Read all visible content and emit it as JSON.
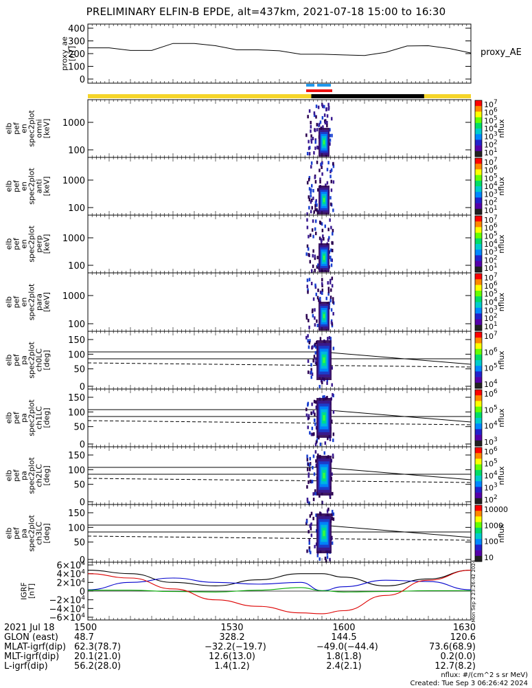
{
  "title": "PRELIMINARY ELFIN-B EPDE, alt=437km, 2021-07-18 15:00 to 16:30",
  "chart_data": {
    "type": "line",
    "panels": [
      {
        "id": "proxy_ae",
        "ylabel": "proxy_ae [nT]",
        "legend": "proxy_AE",
        "ylim": [
          0,
          400
        ],
        "yticks": [
          "400",
          "300",
          "200",
          "100",
          "0"
        ],
        "series": [
          {
            "name": "proxy_AE",
            "x": [
              0,
              5,
              10,
              15,
              20,
              25,
              30,
              35,
              40,
              45,
              50,
              55,
              60,
              65,
              70,
              75,
              80,
              85,
              90
            ],
            "values": [
              245,
              245,
              225,
              225,
              280,
              280,
              262,
              230,
              230,
              222,
              195,
              195,
              190,
              185,
              210,
              260,
              262,
              240,
              205
            ]
          }
        ]
      },
      {
        "id": "en_omni",
        "ylabel": "elb pef en spec2plot omni [keV]",
        "cbar": "nflux",
        "cbar_ticks": [
          "10^7",
          "10^6",
          "10^5",
          "10^4",
          "10^3",
          "10^2",
          "10^1"
        ],
        "yticks": [
          "1000",
          "100"
        ]
      },
      {
        "id": "en_anti",
        "ylabel": "elb pef en spec2plot anti [keV]",
        "cbar": "nflux",
        "cbar_ticks": [
          "10^7",
          "10^6",
          "10^5",
          "10^4",
          "10^3",
          "10^2",
          "10^1"
        ],
        "yticks": [
          "1000",
          "100"
        ]
      },
      {
        "id": "en_perp",
        "ylabel": "elb pef en spec2plot perp [keV]",
        "cbar": "nflux",
        "cbar_ticks": [
          "10^7",
          "10^6",
          "10^5",
          "10^4",
          "10^3",
          "10^2",
          "10^1"
        ],
        "yticks": [
          "1000",
          "100"
        ]
      },
      {
        "id": "en_para",
        "ylabel": "elb pef en spec2plot para [keV]",
        "cbar": "nflux",
        "cbar_ticks": [
          "10^7",
          "10^6",
          "10^5",
          "10^4",
          "10^3",
          "10^2",
          "10^1"
        ],
        "yticks": [
          "1000",
          "100"
        ]
      },
      {
        "id": "pa_ch0",
        "ylabel": "elb pef pa spec2plot ch0LC [deg]",
        "cbar": "nflux",
        "cbar_ticks": [
          "10^7",
          "10^6",
          "10^5",
          "10^4"
        ],
        "yticks": [
          "150",
          "100",
          "50",
          "0"
        ]
      },
      {
        "id": "pa_ch1",
        "ylabel": "elb pef pa spec2plot ch1LC [deg]",
        "cbar": "nflux",
        "cbar_ticks": [
          "10^6",
          "10^5",
          "10^4",
          "10^3"
        ],
        "yticks": [
          "150",
          "100",
          "50",
          "0"
        ]
      },
      {
        "id": "pa_ch2",
        "ylabel": "elb pef pa spec2plot ch2LC [deg]",
        "cbar": "nflux",
        "cbar_ticks": [
          "10^6",
          "10^5",
          "10^4",
          "10^3",
          "10^2"
        ],
        "yticks": [
          "150",
          "100",
          "50",
          "0"
        ]
      },
      {
        "id": "pa_ch3",
        "ylabel": "elb pef pa spec2plot ch3LC [deg]",
        "cbar": "nflux",
        "cbar_ticks": [
          "10000",
          "1000",
          "100",
          "10"
        ],
        "yticks": [
          "150",
          "100",
          "50",
          "0"
        ]
      },
      {
        "id": "igrf",
        "ylabel": "IGRF [nT]",
        "ylim": [
          -60000,
          60000
        ],
        "yticks": [
          "6×10^4",
          "4×10^4",
          "2×10^4",
          "0",
          "−2×10^4",
          "−4×10^4",
          "−6×10^4"
        ],
        "series": [
          {
            "color": "#000000",
            "x": [
              0,
              10,
              20,
              30,
              40,
              50,
              55,
              60,
              70,
              80,
              90
            ],
            "values": [
              48000,
              40000,
              20000,
              12000,
              26000,
              40000,
              40000,
              32000,
              12000,
              28000,
              48000
            ]
          },
          {
            "color": "#0000cc",
            "x": [
              0,
              10,
              20,
              30,
              40,
              50,
              55,
              60,
              70,
              80,
              90
            ],
            "values": [
              3000,
              20000,
              30000,
              20000,
              16000,
              20000,
              1000,
              10000,
              25000,
              22000,
              3000
            ]
          },
          {
            "color": "#00aa00",
            "x": [
              0,
              10,
              20,
              30,
              40,
              50,
              55,
              60,
              70,
              80,
              90
            ],
            "values": [
              2000,
              2000,
              -1000,
              -2000,
              2000,
              8000,
              1000,
              -2000,
              -1000,
              1000,
              1000
            ]
          },
          {
            "color": "#dd0000",
            "x": [
              0,
              10,
              20,
              30,
              40,
              50,
              55,
              60,
              70,
              80,
              90
            ],
            "values": [
              40000,
              30000,
              5000,
              -20000,
              -35000,
              -50000,
              -52000,
              -45000,
              -10000,
              25000,
              48000
            ]
          }
        ]
      }
    ],
    "x_ticks": [
      "1500",
      "1530",
      "1600",
      "1630"
    ],
    "x_range_min": [
      0,
      90
    ]
  },
  "footer": {
    "rows": [
      {
        "label": "2021 Jul 18",
        "v": [
          "1500",
          "1530",
          "1600",
          "1630"
        ]
      },
      {
        "label": "GLON (east)",
        "v": [
          "48.7",
          "328.2",
          "144.5",
          "120.6"
        ]
      },
      {
        "label": "MLAT-igrf(dip)",
        "v": [
          "62.3(78.7)",
          "−32.2(−19.7)",
          "−49.0(−44.4)",
          "73.6(68.9)"
        ]
      },
      {
        "label": "MLT-igrf(dip)",
        "v": [
          "20.1(21.0)",
          "12.6(13.0)",
          "1.8(1.8)",
          "0.2(0.0)"
        ]
      },
      {
        "label": "L-igrf(dip)",
        "v": [
          "56.2(28.0)",
          "1.4(1.2)",
          "2.4(2.1)",
          "12.7(8.2)"
        ]
      }
    ],
    "units": "nflux: #/(cm^2 s sr MeV)",
    "created": "Created: Tue Sep  3 06:26:42 2024",
    "side_stamp": "Mon Sep  2 23:26:42 2024"
  }
}
